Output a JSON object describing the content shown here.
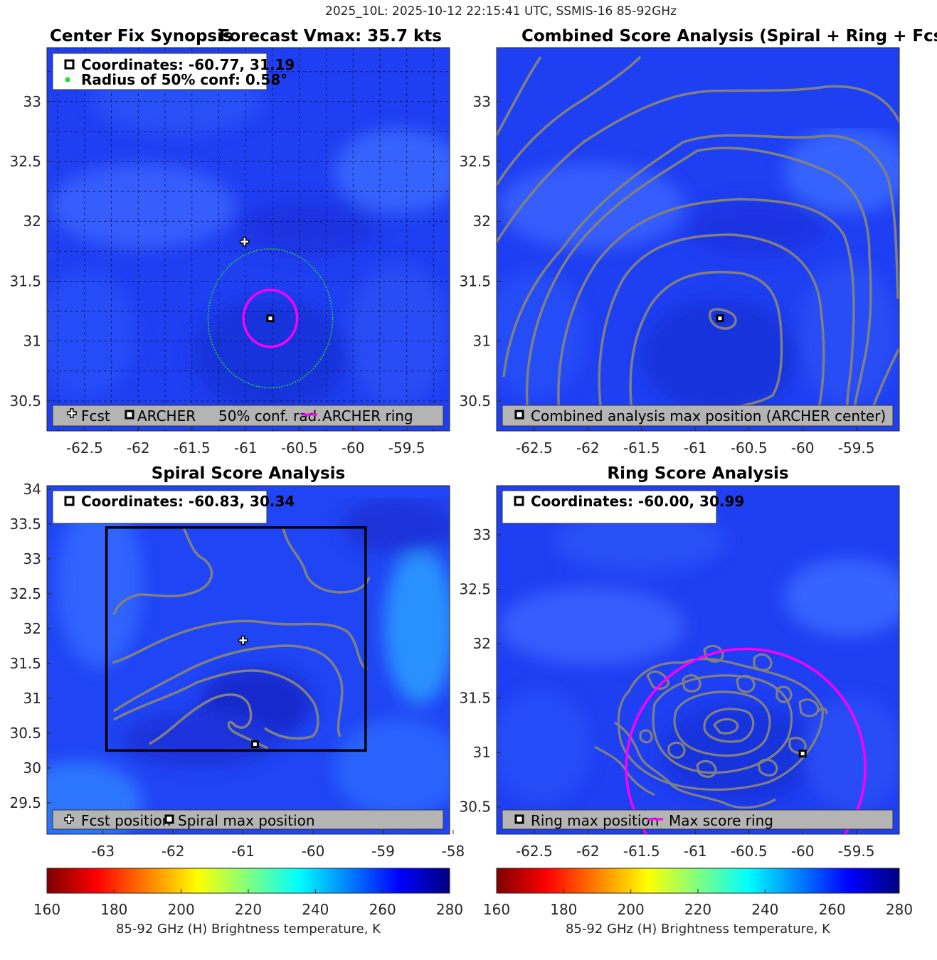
{
  "figure": {
    "suptitle": "2025_10L: 2025-10-12 22:15:41 UTC, SSMIS-16 85-92GHz",
    "colors": {
      "contour": "#808080",
      "magenta": "#ff00ff",
      "conf_circle": "#22dd22",
      "legend_bg": "#b4b4b4",
      "background_field": "#1f3ff2"
    }
  },
  "chart_data": [
    {
      "id": "synopsis",
      "type": "heatmap",
      "title_left": "Center Fix Synopsis",
      "title_right": "Forecast Vmax: 35.7 kts",
      "xlim": [
        -62.85,
        -59.1
      ],
      "ylim": [
        30.25,
        33.45
      ],
      "xticks": [
        -62.5,
        -62,
        -61.5,
        -61,
        -60.5,
        -60,
        -59.5
      ],
      "yticks": [
        30.5,
        31,
        31.5,
        32,
        32.5,
        33
      ],
      "xtick_labels": [
        "-62.5",
        "-62",
        "-61.5",
        "-61",
        "-60.5",
        "-60",
        "-59.5"
      ],
      "ytick_labels": [
        "30.5",
        "31",
        "31.5",
        "32",
        "32.5",
        "33"
      ],
      "grid": true,
      "info_lines": [
        "Coordinates: -60.77, 31.19",
        "Radius of 50% conf: 0.58°"
      ],
      "legend": [
        "Fcst",
        "ARCHER",
        "50% conf. rad.",
        "ARCHER ring"
      ],
      "archer_center": [
        -60.77,
        31.19
      ],
      "fcst_position": [
        -61.01,
        31.83
      ],
      "conf_radius_deg": 0.58,
      "archer_ring_radius_deg": 0.25
    },
    {
      "id": "combined",
      "type": "heatmap",
      "title": "Combined Score Analysis (Spiral + Ring + Fcst_Pe",
      "xlim": [
        -62.85,
        -59.1
      ],
      "ylim": [
        30.25,
        33.45
      ],
      "xticks": [
        -62.5,
        -62,
        -61.5,
        -61,
        -60.5,
        -60,
        -59.5
      ],
      "yticks": [
        30.5,
        31,
        31.5,
        32,
        32.5,
        33
      ],
      "xtick_labels": [
        "-62.5",
        "-62",
        "-61.5",
        "-61",
        "-60.5",
        "-60",
        "-59.5"
      ],
      "ytick_labels": [
        "30.5",
        "31",
        "31.5",
        "32",
        "32.5",
        "33"
      ],
      "grid": false,
      "legend": [
        "Combined analysis max position (ARCHER center)"
      ],
      "max_position": [
        -60.77,
        31.19
      ]
    },
    {
      "id": "spiral",
      "type": "heatmap",
      "title": "Spiral Score Analysis",
      "xlim": [
        -63.8,
        -58.05
      ],
      "ylim": [
        29.05,
        34.05
      ],
      "xticks": [
        -63,
        -62,
        -61,
        -60,
        -59,
        -58
      ],
      "yticks": [
        29.5,
        30,
        30.5,
        31,
        31.5,
        32,
        32.5,
        33,
        33.5,
        34
      ],
      "xtick_labels": [
        "-63",
        "-62",
        "-61",
        "-60",
        "-59",
        "-58"
      ],
      "ytick_labels": [
        "29.5",
        "30",
        "30.5",
        "31",
        "31.5",
        "32",
        "32.5",
        "33",
        "33.5",
        "34"
      ],
      "grid": false,
      "info_lines": [
        "Coordinates: -60.83, 30.34"
      ],
      "legend": [
        "Fcst position",
        "Spiral max position"
      ],
      "spiral_max": [
        -60.83,
        30.34
      ],
      "fcst_position": [
        -61.0,
        31.83
      ],
      "search_box": {
        "lon": [
          -62.95,
          -59.25
        ],
        "lat": [
          30.25,
          33.45
        ]
      }
    },
    {
      "id": "ring",
      "type": "heatmap",
      "title": "Ring Score Analysis",
      "xlim": [
        -62.85,
        -59.1
      ],
      "ylim": [
        30.25,
        33.45
      ],
      "xticks": [
        -62.5,
        -62,
        -61.5,
        -61,
        -60.5,
        -60,
        -59.5
      ],
      "yticks": [
        30.5,
        31,
        31.5,
        32,
        32.5,
        33
      ],
      "xtick_labels": [
        "-62.5",
        "-62",
        "-61.5",
        "-61",
        "-60.5",
        "-60",
        "-59.5"
      ],
      "ytick_labels": [
        "30.5",
        "31",
        "31.5",
        "32",
        "32.5",
        "33"
      ],
      "grid": false,
      "info_lines": [
        "Coordinates: -60.00, 30.99"
      ],
      "legend": [
        "Ring max position",
        "Max score ring"
      ],
      "ring_max": [
        -60.0,
        30.99
      ],
      "ring_radius_deg": 1.06
    }
  ],
  "colorbars": [
    {
      "ticks": [
        "160",
        "180",
        "200",
        "220",
        "240",
        "260",
        "280"
      ],
      "label": "85-92 GHz (H) Brightness temperature, K",
      "range": [
        160,
        280
      ]
    },
    {
      "ticks": [
        "160",
        "180",
        "200",
        "220",
        "240",
        "260",
        "280"
      ],
      "label": "85-92 GHz (H) Brightness temperature, K",
      "range": [
        160,
        280
      ]
    }
  ]
}
